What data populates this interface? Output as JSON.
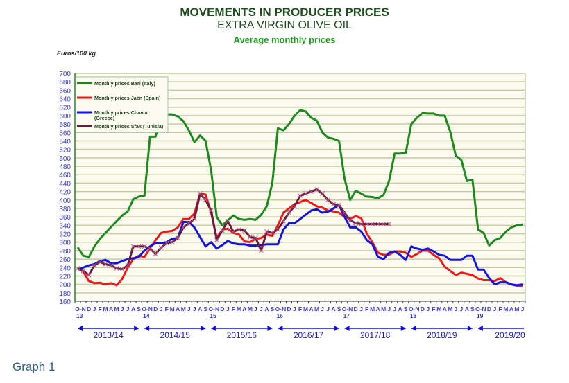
{
  "chart_data": {
    "type": "line",
    "title": "MOVEMENTS IN PRODUCER PRICES",
    "subtitle": "EXTRA VIRGIN OLIVE OIL",
    "subtitle2": "Average monthly prices",
    "ylabel": "Euros/100 kg",
    "ylim": [
      160,
      700
    ],
    "ystep": 20,
    "grid": true,
    "legend_position": "top-left",
    "seasons": [
      "2013/14",
      "2014/15",
      "2015/16",
      "2016/17",
      "2017/18",
      "2018/19",
      "2019/20"
    ],
    "season_year_labels": [
      "13",
      "14",
      "15",
      "16",
      "17",
      "18",
      "19"
    ],
    "month_labels": [
      "O-N",
      "D",
      "J",
      "F",
      "M",
      "A",
      "M",
      "J",
      "J",
      "A",
      "S"
    ],
    "last_season_month_labels": [
      "O-N",
      "D",
      "J",
      "F",
      "M",
      "A",
      "M",
      "J"
    ],
    "x_start": "Oct 2013",
    "x_end": "Jun 2020",
    "series": [
      {
        "name": "Monthly prices Bari (Italy)",
        "color": "#1c8a1c",
        "values": [
          288,
          268,
          265,
          290,
          308,
          322,
          336,
          350,
          363,
          373,
          402,
          408,
          410,
          550,
          550,
          600,
          603,
          603,
          598,
          587,
          565,
          537,
          553,
          540,
          470,
          360,
          340,
          352,
          363,
          355,
          353,
          355,
          353,
          365,
          385,
          440,
          570,
          565,
          580,
          600,
          613,
          610,
          595,
          588,
          560,
          548,
          545,
          540,
          450,
          400,
          422,
          415,
          408,
          407,
          404,
          412,
          445,
          510,
          510,
          512,
          580,
          595,
          606,
          605,
          605,
          600,
          600,
          562,
          505,
          495,
          445,
          448,
          330,
          322,
          292,
          305,
          310,
          325,
          335,
          340,
          342
        ]
      },
      {
        "name": "Monthly prices Jaén (Spain)",
        "color": "#f01818",
        "values": [
          238,
          230,
          208,
          203,
          204,
          200,
          203,
          198,
          213,
          240,
          260,
          268,
          265,
          285,
          305,
          322,
          325,
          327,
          335,
          355,
          355,
          368,
          415,
          413,
          370,
          310,
          330,
          332,
          322,
          318,
          302,
          300,
          308,
          310,
          318,
          315,
          340,
          370,
          380,
          390,
          395,
          400,
          393,
          385,
          382,
          375,
          373,
          370,
          360,
          355,
          362,
          357,
          320,
          300,
          275,
          270,
          270,
          278,
          278,
          275,
          265,
          272,
          280,
          280,
          270,
          262,
          242,
          232,
          222,
          228,
          225,
          222,
          214,
          210,
          210,
          208,
          215,
          205,
          200,
          197,
          196
        ]
      },
      {
        "name": "Monthly prices Chania (Greece)",
        "color": "#1414e0",
        "values": [
          235,
          240,
          245,
          248,
          255,
          258,
          250,
          250,
          255,
          260,
          262,
          265,
          280,
          290,
          298,
          298,
          300,
          308,
          310,
          348,
          348,
          335,
          312,
          290,
          300,
          285,
          293,
          303,
          297,
          295,
          295,
          292,
          292,
          293,
          295,
          295,
          295,
          330,
          345,
          345,
          355,
          365,
          375,
          378,
          370,
          372,
          380,
          388,
          360,
          335,
          335,
          325,
          305,
          295,
          265,
          260,
          275,
          278,
          270,
          258,
          290,
          285,
          282,
          285,
          278,
          270,
          268,
          258,
          258,
          258,
          268,
          268,
          235,
          235,
          215,
          200,
          205,
          205,
          200,
          198,
          200
        ]
      },
      {
        "name": "Monthly prices Sfax (Tunisia)",
        "color": "#6e1a40",
        "values": [
          238,
          232,
          222,
          245,
          253,
          248,
          245,
          238,
          236,
          245,
          290,
          290,
          290,
          285,
          272,
          287,
          298,
          300,
          310,
          335,
          345,
          355,
          415,
          400,
          375,
          305,
          328,
          350,
          325,
          330,
          328,
          312,
          310,
          280,
          325,
          322,
          330,
          350,
          370,
          385,
          410,
          415,
          420,
          425,
          415,
          400,
          390,
          388,
          370,
          352,
          345,
          343,
          343,
          343,
          343,
          343,
          343
        ]
      }
    ]
  },
  "footer": {
    "label": "Graph 1"
  }
}
